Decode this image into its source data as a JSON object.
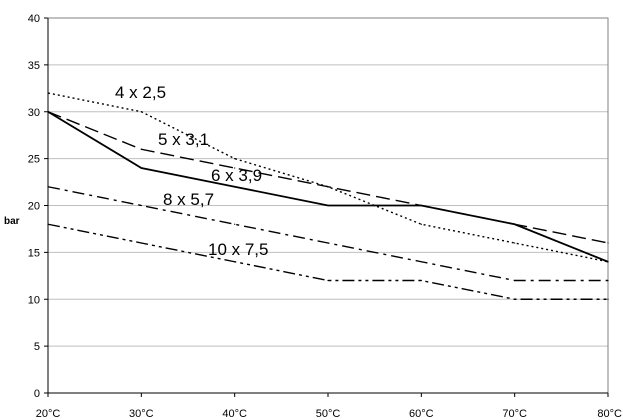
{
  "chart_data": {
    "type": "line",
    "title": "",
    "xlabel": "",
    "ylabel": "bar",
    "categories": [
      "20°C",
      "30°C",
      "40°C",
      "50°C",
      "60°C",
      "70°C",
      "80°C"
    ],
    "y_ticks": [
      "0",
      "5",
      "10",
      "15",
      "20",
      "25",
      "30",
      "35",
      "40"
    ],
    "ylim": [
      0,
      40
    ],
    "grid": true,
    "legend": "none (inline labels)",
    "series": [
      {
        "name": "4 x 2,5",
        "values": [
          32,
          30,
          25,
          22,
          18,
          16,
          14
        ],
        "dash": "dotted"
      },
      {
        "name": "5 x 3,1",
        "values": [
          30,
          26,
          24,
          22,
          20,
          18,
          16
        ],
        "dash": "long-dash"
      },
      {
        "name": "6 x 3,9",
        "values": [
          30,
          24,
          22,
          20,
          20,
          18,
          14
        ],
        "dash": "solid"
      },
      {
        "name": "8 x 5,7",
        "values": [
          22,
          20,
          18,
          16,
          14,
          12,
          12
        ],
        "dash": "dash-dot"
      },
      {
        "name": "10 x 7,5",
        "values": [
          18,
          16,
          14,
          12,
          12,
          10,
          10
        ],
        "dash": "dash-dot-dot"
      }
    ]
  }
}
